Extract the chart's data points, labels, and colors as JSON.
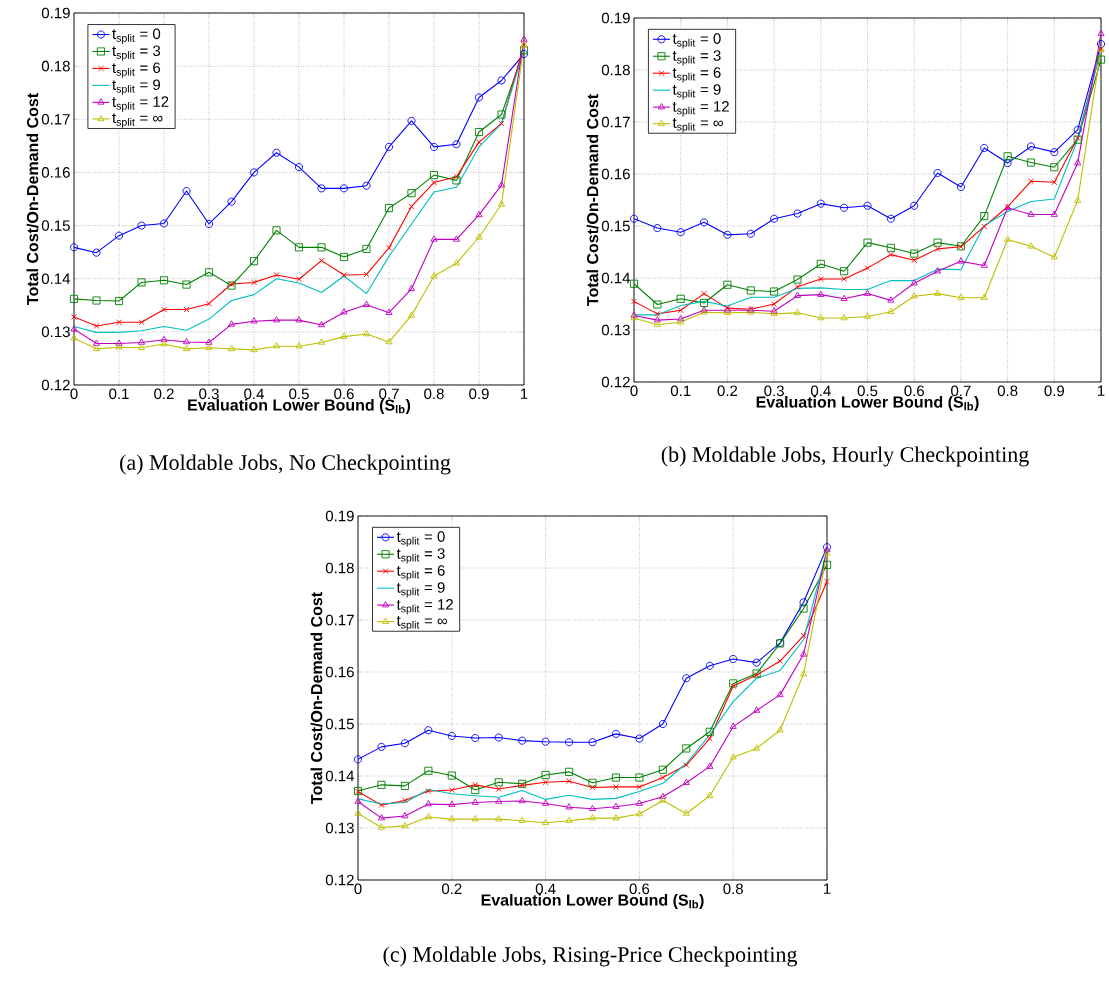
{
  "chart_data": [
    {
      "type": "line",
      "xlabel": "Evaluation Lower Bound (S$_{lb}$)",
      "ylabel": "Total Cost/On-Demand Cost",
      "xlim": [
        0,
        1
      ],
      "ylim": [
        0.12,
        0.19
      ],
      "xticks": [
        0,
        0.1,
        0.2,
        0.3,
        0.4,
        0.5,
        0.6,
        0.7,
        0.8,
        0.9,
        1
      ],
      "yticks": [
        0.12,
        0.13,
        0.14,
        0.15,
        0.16,
        0.17,
        0.18,
        0.19
      ],
      "grid": true,
      "legend": "top left",
      "line_style": "solid",
      "annotations": [
        "(a) Moldable Jobs, No Checkpointing"
      ],
      "x": [
        0,
        0.05,
        0.1,
        0.15,
        0.2,
        0.25,
        0.3,
        0.35,
        0.4,
        0.45,
        0.5,
        0.55,
        0.6,
        0.65,
        0.7,
        0.75,
        0.8,
        0.85,
        0.9,
        0.95,
        1
      ],
      "series": [
        {
          "name": "t$_{split}$ = 0",
          "color": "#0000ff",
          "marker": "circle",
          "values": [
            0.1459,
            0.1449,
            0.1481,
            0.15,
            0.1504,
            0.1565,
            0.1503,
            0.1545,
            0.16,
            0.1637,
            0.161,
            0.157,
            0.157,
            0.1575,
            0.1648,
            0.1697,
            0.1648,
            0.1653,
            0.1741,
            0.1773,
            0.1823
          ]
        },
        {
          "name": "t$_{split}$ = 3",
          "color": "#008000",
          "marker": "square",
          "values": [
            0.1362,
            0.1359,
            0.1358,
            0.1393,
            0.1397,
            0.1389,
            0.1412,
            0.1387,
            0.1433,
            0.1491,
            0.1459,
            0.1459,
            0.1441,
            0.1456,
            0.1533,
            0.1561,
            0.1595,
            0.1585,
            0.1676,
            0.1709,
            0.183
          ]
        },
        {
          "name": "t$_{split}$ = 6",
          "color": "#ff0000",
          "marker": "cross",
          "values": [
            0.1328,
            0.1311,
            0.1318,
            0.1318,
            0.1342,
            0.1342,
            0.1353,
            0.139,
            0.1393,
            0.1407,
            0.1399,
            0.1434,
            0.1407,
            0.1408,
            0.1458,
            0.1536,
            0.1581,
            0.1592,
            0.1657,
            0.1692,
            0.184
          ]
        },
        {
          "name": "t$_{split}$ = 9",
          "color": "#00bfbf",
          "marker": "none",
          "values": [
            0.131,
            0.1299,
            0.1299,
            0.1302,
            0.131,
            0.1303,
            0.1324,
            0.1359,
            0.137,
            0.14,
            0.1392,
            0.1374,
            0.1405,
            0.1372,
            0.1442,
            0.1503,
            0.1563,
            0.1572,
            0.1648,
            0.1692,
            0.183
          ]
        },
        {
          "name": "t$_{split}$ = 12",
          "color": "#bf00bf",
          "marker": "triangle",
          "values": [
            0.1305,
            0.1278,
            0.1278,
            0.128,
            0.1285,
            0.1281,
            0.128,
            0.1314,
            0.132,
            0.1322,
            0.1322,
            0.1313,
            0.1337,
            0.1351,
            0.1336,
            0.1381,
            0.1474,
            0.1474,
            0.152,
            0.1576,
            0.185
          ]
        },
        {
          "name": "t$_{split}$ = ∞",
          "color": "#bfbf00",
          "marker": "triangle",
          "values": [
            0.1288,
            0.1268,
            0.1271,
            0.127,
            0.1277,
            0.1268,
            0.127,
            0.1268,
            0.1266,
            0.1273,
            0.1273,
            0.128,
            0.1291,
            0.1296,
            0.1281,
            0.1331,
            0.1405,
            0.1429,
            0.1478,
            0.154,
            0.184
          ]
        }
      ]
    },
    {
      "type": "line",
      "xlabel": "Evaluation Lower Bound (S$_{lb}$)",
      "ylabel": "Total Cost/On-Demand Cost",
      "xlim": [
        0,
        1
      ],
      "ylim": [
        0.12,
        0.19
      ],
      "xticks": [
        0,
        0.1,
        0.2,
        0.3,
        0.4,
        0.5,
        0.6,
        0.7,
        0.8,
        0.9,
        1
      ],
      "yticks": [
        0.12,
        0.13,
        0.14,
        0.15,
        0.16,
        0.17,
        0.18,
        0.19
      ],
      "grid": true,
      "legend": "top left",
      "line_style": "solid",
      "annotations": [
        "(b) Moldable Jobs, Hourly Checkpointing"
      ],
      "x": [
        0,
        0.05,
        0.1,
        0.15,
        0.2,
        0.25,
        0.3,
        0.35,
        0.4,
        0.45,
        0.5,
        0.55,
        0.6,
        0.65,
        0.7,
        0.75,
        0.8,
        0.85,
        0.9,
        0.95,
        1
      ],
      "series": [
        {
          "name": "t$_{split}$ = 0",
          "color": "#0000ff",
          "marker": "circle",
          "values": [
            0.1514,
            0.1496,
            0.1488,
            0.1507,
            0.1483,
            0.1485,
            0.1514,
            0.1524,
            0.1543,
            0.1535,
            0.1539,
            0.1514,
            0.1539,
            0.1602,
            0.1575,
            0.165,
            0.1621,
            0.1653,
            0.1642,
            0.1685,
            0.185
          ]
        },
        {
          "name": "t$_{split}$ = 3",
          "color": "#008000",
          "marker": "square",
          "values": [
            0.1389,
            0.1349,
            0.136,
            0.1352,
            0.1387,
            0.1376,
            0.1374,
            0.1397,
            0.1427,
            0.1413,
            0.1468,
            0.1458,
            0.1447,
            0.1468,
            0.1461,
            0.1519,
            0.1634,
            0.1622,
            0.1613,
            0.1666,
            0.182
          ]
        },
        {
          "name": "t$_{split}$ = 6",
          "color": "#ff0000",
          "marker": "cross",
          "values": [
            0.1355,
            0.1331,
            0.1338,
            0.137,
            0.1342,
            0.134,
            0.135,
            0.1383,
            0.1398,
            0.1398,
            0.1419,
            0.1445,
            0.1434,
            0.1456,
            0.146,
            0.1499,
            0.1537,
            0.1586,
            0.1584,
            0.1669,
            0.184
          ]
        },
        {
          "name": "t$_{split}$ = 9",
          "color": "#00bfbf",
          "marker": "none",
          "values": [
            0.1329,
            0.1329,
            0.1347,
            0.1355,
            0.1346,
            0.1363,
            0.1363,
            0.138,
            0.1381,
            0.1378,
            0.1378,
            0.1395,
            0.1395,
            0.1417,
            0.1416,
            0.1501,
            0.1528,
            0.1547,
            0.1552,
            0.1666,
            0.184
          ]
        },
        {
          "name": "t$_{split}$ = 12",
          "color": "#bf00bf",
          "marker": "triangle",
          "values": [
            0.1328,
            0.1319,
            0.1321,
            0.1338,
            0.1338,
            0.1338,
            0.1336,
            0.1366,
            0.1368,
            0.136,
            0.137,
            0.1357,
            0.139,
            0.1413,
            0.1432,
            0.1424,
            0.1535,
            0.1522,
            0.1522,
            0.1621,
            0.187
          ]
        },
        {
          "name": "t$_{split}$ = ∞",
          "color": "#bfbf00",
          "marker": "triangle",
          "values": [
            0.1323,
            0.131,
            0.1315,
            0.1334,
            0.1333,
            0.1334,
            0.1331,
            0.1333,
            0.1323,
            0.1323,
            0.1326,
            0.1335,
            0.1365,
            0.137,
            0.1362,
            0.1362,
            0.1474,
            0.1461,
            0.144,
            0.1549,
            0.184
          ]
        }
      ]
    },
    {
      "type": "line",
      "xlabel": "Evaluation Lower Bound (S$_{lb}$)",
      "ylabel": "Total Cost/On-Demand Cost",
      "xlim": [
        0,
        1
      ],
      "ylim": [
        0.12,
        0.19
      ],
      "xticks": [
        0,
        0.2,
        0.4,
        0.6,
        0.8,
        1
      ],
      "yticks": [
        0.12,
        0.13,
        0.14,
        0.15,
        0.16,
        0.17,
        0.18,
        0.19
      ],
      "grid": true,
      "legend": "top left",
      "line_style": "solid",
      "annotations": [
        "(c) Moldable Jobs, Rising-Price Checkpointing"
      ],
      "x": [
        0,
        0.05,
        0.1,
        0.15,
        0.2,
        0.25,
        0.3,
        0.35,
        0.4,
        0.45,
        0.5,
        0.55,
        0.6,
        0.65,
        0.7,
        0.75,
        0.8,
        0.85,
        0.9,
        0.95,
        1
      ],
      "series": [
        {
          "name": "t$_{split}$ = 0",
          "color": "#0000ff",
          "marker": "circle",
          "values": [
            0.1432,
            0.1456,
            0.1463,
            0.1488,
            0.1477,
            0.1473,
            0.1474,
            0.1468,
            0.1466,
            0.1465,
            0.1465,
            0.1481,
            0.1472,
            0.15,
            0.1588,
            0.1612,
            0.1625,
            0.1618,
            0.1656,
            0.1734,
            0.184
          ]
        },
        {
          "name": "t$_{split}$ = 3",
          "color": "#008000",
          "marker": "square",
          "values": [
            0.1371,
            0.1383,
            0.1381,
            0.141,
            0.1401,
            0.1373,
            0.1388,
            0.1385,
            0.1402,
            0.1408,
            0.1387,
            0.1397,
            0.1397,
            0.1412,
            0.1453,
            0.1485,
            0.1578,
            0.1597,
            0.1655,
            0.1722,
            0.1806
          ]
        },
        {
          "name": "t$_{split}$ = 6",
          "color": "#ff0000",
          "marker": "cross",
          "values": [
            0.137,
            0.1344,
            0.1353,
            0.1371,
            0.1373,
            0.1383,
            0.1375,
            0.1382,
            0.1388,
            0.139,
            0.1378,
            0.1379,
            0.1379,
            0.1397,
            0.1421,
            0.1472,
            0.1573,
            0.1594,
            0.1621,
            0.167,
            0.1774
          ]
        },
        {
          "name": "t$_{split}$ = 9",
          "color": "#00bfbf",
          "marker": "none",
          "values": [
            0.1356,
            0.1346,
            0.1349,
            0.1374,
            0.1366,
            0.1362,
            0.1359,
            0.1372,
            0.1355,
            0.1363,
            0.1355,
            0.1357,
            0.137,
            0.1386,
            0.1424,
            0.1479,
            0.1543,
            0.1588,
            0.1603,
            0.1662,
            0.1835
          ]
        },
        {
          "name": "t$_{split}$ = 12",
          "color": "#bf00bf",
          "marker": "triangle",
          "values": [
            0.1351,
            0.1319,
            0.1323,
            0.1346,
            0.1345,
            0.1349,
            0.1351,
            0.1352,
            0.1347,
            0.134,
            0.1337,
            0.1341,
            0.1347,
            0.136,
            0.1387,
            0.1418,
            0.1495,
            0.1526,
            0.1556,
            0.1634,
            0.1835
          ]
        },
        {
          "name": "t$_{split}$ = ∞",
          "color": "#bfbf00",
          "marker": "triangle",
          "values": [
            0.1328,
            0.1301,
            0.1304,
            0.1321,
            0.1317,
            0.1317,
            0.1317,
            0.1314,
            0.131,
            0.1314,
            0.1319,
            0.1319,
            0.1327,
            0.1353,
            0.1328,
            0.1362,
            0.1436,
            0.1453,
            0.1488,
            0.1596,
            0.1828
          ]
        }
      ]
    }
  ]
}
